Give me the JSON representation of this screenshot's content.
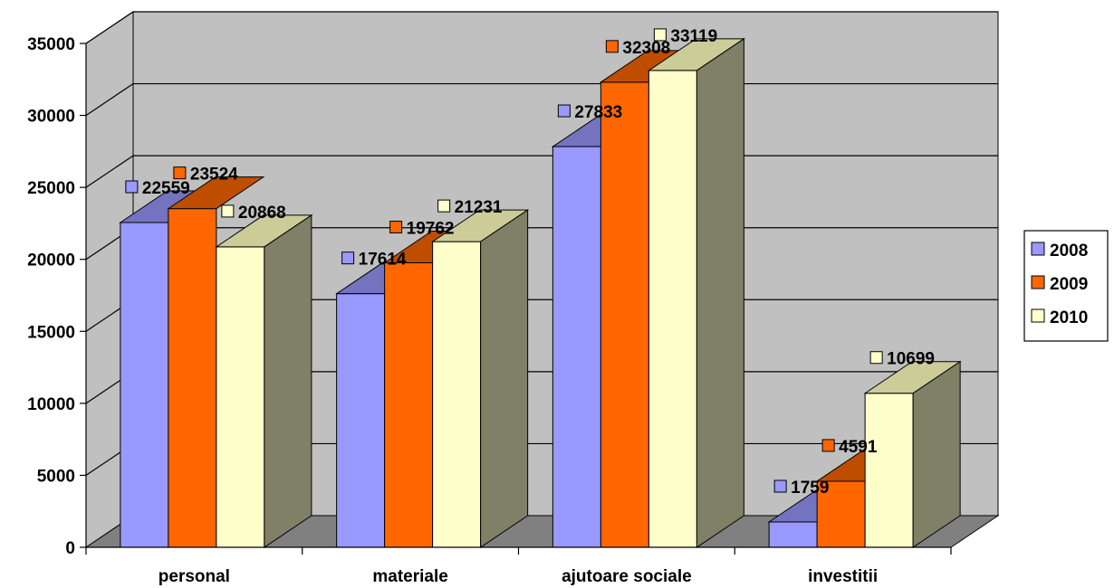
{
  "chart_data": {
    "type": "bar",
    "style": "3d-clustered-column",
    "categories": [
      "personal",
      "materiale",
      "ajutoare sociale",
      "investitii"
    ],
    "series": [
      {
        "name": "2008",
        "values": [
          22559,
          17614,
          27833,
          1759
        ],
        "color": "#9999ff"
      },
      {
        "name": "2009",
        "values": [
          23524,
          19762,
          32308,
          4591
        ],
        "color": "#ff6600"
      },
      {
        "name": "2010",
        "values": [
          20868,
          21231,
          33119,
          10699
        ],
        "color": "#ffffcc"
      }
    ],
    "data_labels": [
      [
        "22559",
        "17614",
        "27833",
        "1759"
      ],
      [
        "23524",
        "19762",
        "32308",
        "4591"
      ],
      [
        "20868",
        "21231",
        "33119",
        "10699"
      ]
    ],
    "ylim": [
      0,
      35000
    ],
    "yticks": [
      "0",
      "5000",
      "10000",
      "15000",
      "20000",
      "25000",
      "30000",
      "35000"
    ],
    "grid": true,
    "legend_position": "right",
    "colors": {
      "wall": "#c0c0c0",
      "floor": "#808080",
      "side_shade": "#808066"
    }
  }
}
